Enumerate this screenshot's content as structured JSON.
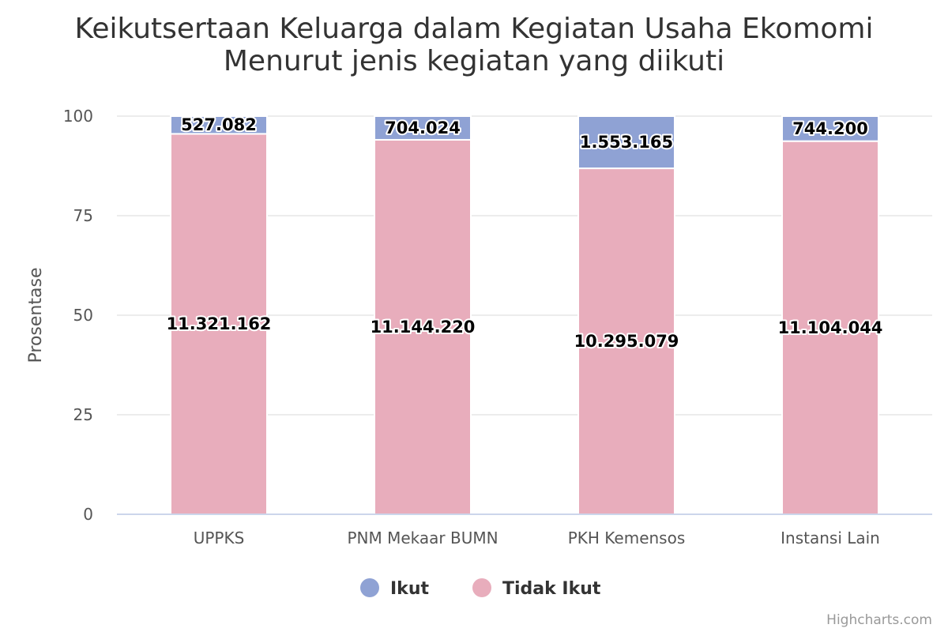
{
  "chart_data": {
    "type": "bar",
    "stacking": "percent",
    "title": "Keikutsertaan Keluarga dalam Kegiatan Usaha Ekomomi",
    "subtitle": "Menurut jenis kegiatan yang diikuti",
    "xlabel": "",
    "ylabel": "Prosentase",
    "ylim": [
      0,
      100
    ],
    "yticks": [
      0,
      25,
      50,
      75,
      100
    ],
    "grid": true,
    "legend_position": "bottom-center",
    "categories": [
      "UPPKS",
      "PNM Mekaar BUMN",
      "PKH Kemensos",
      "Instansi Lain"
    ],
    "series": [
      {
        "name": "Ikut",
        "color": "#8fa2d4",
        "values": [
          527082,
          704024,
          1553165,
          744200
        ],
        "labels": [
          "527.082",
          "704.024",
          "1.553.165",
          "744.200"
        ]
      },
      {
        "name": "Tidak Ikut",
        "color": "#e8adbc",
        "values": [
          11321162,
          11144220,
          10295079,
          11104044
        ],
        "labels": [
          "11.321.162",
          "11.144.220",
          "10.295.079",
          "11.104.044"
        ]
      }
    ]
  },
  "credits": "Highcharts.com"
}
